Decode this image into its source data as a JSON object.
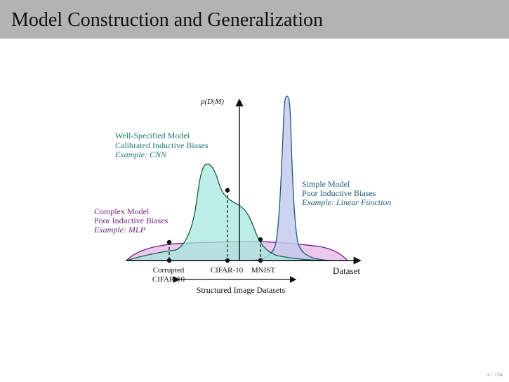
{
  "slide": {
    "title": "Model Construction and Generalization",
    "page_current": "4",
    "page_total": "134"
  },
  "colors": {
    "title_bar": "#b3b3b3",
    "well_specified": "#1b7a6b",
    "well_specified_fill": "#a6e8dc",
    "simple": "#1d5a7a",
    "simple_fill": "#c6cbee",
    "complex": "#6e1f7e",
    "complex_fill": "#e6b6e6"
  },
  "diagram": {
    "y_axis_label": "p(D|M)",
    "x_axis_label": "Dataset",
    "well_specified": {
      "line1": "Well-Specified Model",
      "line2": "Calibrated Inductive Biases",
      "line3": "Example: CNN"
    },
    "simple": {
      "line1": "Simple Model",
      "line2": "Poor Inductive Biases",
      "line3": "Example: Linear Function"
    },
    "complex": {
      "line1": "Complex Model",
      "line2": "Poor Inductive Biases",
      "line3": "Example: MLP"
    },
    "ticks": {
      "corrupted_line1": "Corrupted",
      "corrupted_line2": "CIFAR-10",
      "cifar10": "CIFAR-10",
      "mnist": "MNIST"
    },
    "range_label": "Structured Image Datasets"
  }
}
